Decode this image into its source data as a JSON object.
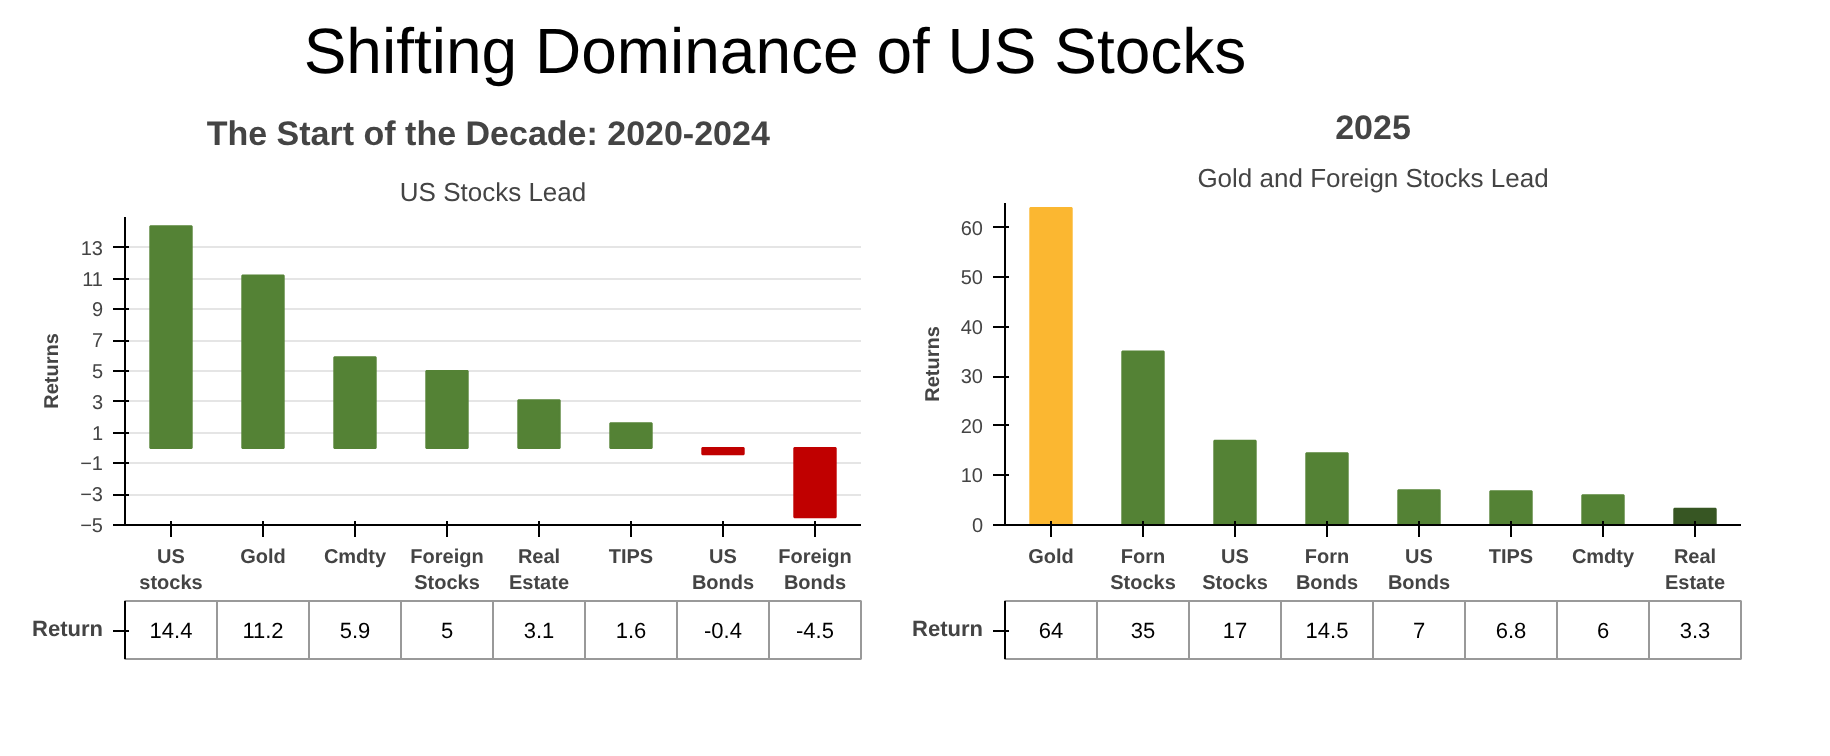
{
  "chart_data": [
    {
      "type": "bar",
      "title": "The Start of the Decade:  2020-2024",
      "subtitle": "US Stocks Lead",
      "ylabel": "Returns",
      "annotations": [
        "Shifting Dominance of US Stocks",
        "Return"
      ],
      "categories": [
        "US stocks",
        "Gold",
        "Cmdty",
        "Foreign Stocks",
        "Real Estate",
        "TIPS",
        "US Bonds",
        "Foreign Bonds"
      ],
      "values": [
        14.4,
        11.2,
        5.9,
        5,
        3.1,
        1.6,
        -0.4,
        -4.5
      ],
      "colors": [
        "#548235",
        "#548235",
        "#548235",
        "#548235",
        "#548235",
        "#548235",
        "#c00000",
        "#c00000"
      ],
      "ylim": [
        -5,
        15
      ],
      "yticks": [
        -5,
        -3,
        -1,
        1,
        3,
        5,
        7,
        9,
        11,
        13
      ],
      "grid": "y",
      "data_labels": true
    },
    {
      "type": "bar",
      "title": "2025",
      "subtitle": "Gold and Foreign Stocks Lead",
      "ylabel": "Returns",
      "annotations": [
        "Return"
      ],
      "categories": [
        "Gold",
        "Forn Stocks",
        "US Stocks",
        "Forn Bonds",
        "US Bonds",
        "TIPS",
        "Cmdty",
        "Real Estate"
      ],
      "values": [
        64,
        35,
        17,
        14.5,
        7,
        6.8,
        6,
        3.3
      ],
      "colors": [
        "#fbb731",
        "#548235",
        "#548235",
        "#548235",
        "#548235",
        "#548235",
        "#548235",
        "#375623"
      ],
      "ylim": [
        0,
        65
      ],
      "yticks": [
        0,
        10,
        20,
        30,
        40,
        50,
        60
      ],
      "grid": false,
      "data_labels": true
    }
  ]
}
